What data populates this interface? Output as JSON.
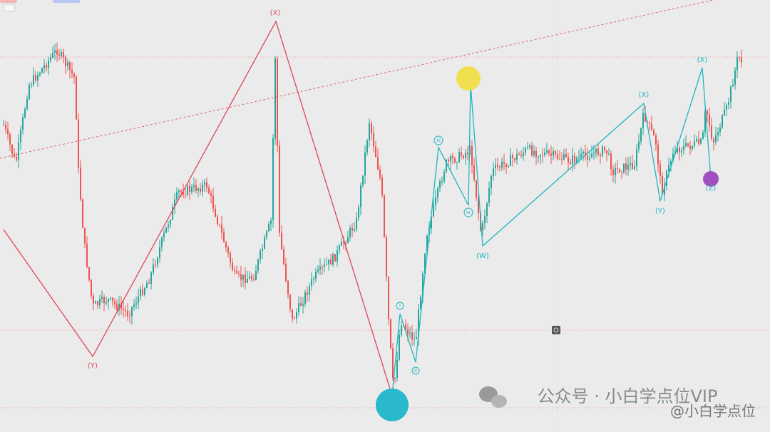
{
  "waves": {
    "red": [
      "(X)",
      "(Y)"
    ],
    "cyan": [
      "i",
      "ii",
      "iii",
      "iv",
      "(W)",
      "(X)",
      "(Y)",
      "(X)",
      "(Z)"
    ]
  },
  "watermark": {
    "main": "公众号 · 小白学点位VIP",
    "handle": "@小白学点位"
  }
}
